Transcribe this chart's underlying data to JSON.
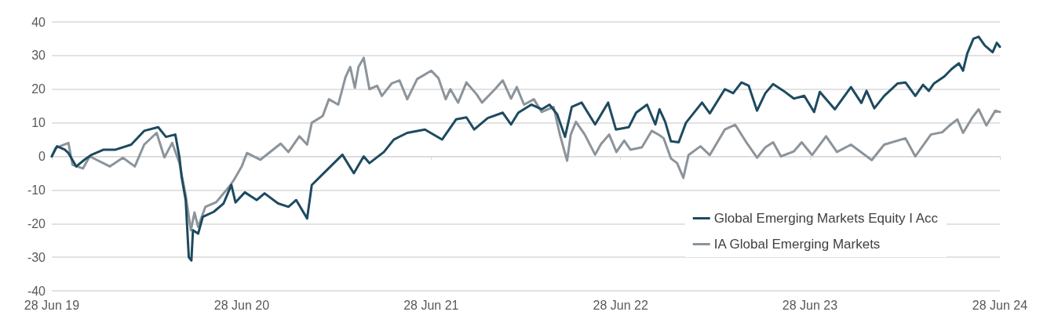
{
  "chart_data": {
    "type": "line",
    "xlim": [
      "2019-06-28",
      "2024-06-28"
    ],
    "xticks": [
      {
        "value": "2019-06-28",
        "label": "28 Jun 19"
      },
      {
        "value": "2020-06-28",
        "label": "28 Jun 20"
      },
      {
        "value": "2021-06-28",
        "label": "28 Jun 21"
      },
      {
        "value": "2022-06-28",
        "label": "28 Jun 22"
      },
      {
        "value": "2023-06-28",
        "label": "28 Jun 23"
      },
      {
        "value": "2024-06-28",
        "label": "28 Jun 24"
      }
    ],
    "ylim": [
      -40,
      40
    ],
    "yticks": [
      -40,
      -30,
      -20,
      -10,
      0,
      10,
      20,
      30,
      40
    ],
    "grid": "y",
    "legend": "bottom right",
    "marker": "none",
    "line_style": "solid",
    "series": [
      {
        "name": "Global Emerging Markets Equity I Acc",
        "color": "#1d4a60",
        "x": [
          "2019-06-28",
          "2019-07-08",
          "2019-07-23",
          "2019-07-30",
          "2019-08-14",
          "2019-08-30",
          "2019-09-13",
          "2019-10-06",
          "2019-10-29",
          "2019-11-28",
          "2019-12-23",
          "2020-01-19",
          "2020-02-03",
          "2020-02-21",
          "2020-02-29",
          "2020-03-04",
          "2020-03-12",
          "2020-03-18",
          "2020-03-23",
          "2020-03-26",
          "2020-04-05",
          "2020-04-14",
          "2020-05-05",
          "2020-05-24",
          "2020-06-08",
          "2020-06-16",
          "2020-07-04",
          "2020-07-27",
          "2020-08-11",
          "2020-09-06",
          "2020-09-26",
          "2020-10-11",
          "2020-11-01",
          "2020-11-10",
          "2020-12-05",
          "2021-01-08",
          "2021-01-30",
          "2021-02-18",
          "2021-03-01",
          "2021-03-29",
          "2021-04-17",
          "2021-05-13",
          "2021-06-16",
          "2021-07-19",
          "2021-08-15",
          "2021-09-04",
          "2021-09-19",
          "2021-10-15",
          "2021-11-13",
          "2021-11-29",
          "2021-12-13",
          "2022-01-07",
          "2022-01-27",
          "2022-02-11",
          "2022-02-26",
          "2022-03-13",
          "2022-03-26",
          "2022-04-14",
          "2022-05-10",
          "2022-06-04",
          "2022-06-19",
          "2022-07-14",
          "2022-07-28",
          "2022-08-18",
          "2022-09-03",
          "2022-09-11",
          "2022-09-22",
          "2022-10-03",
          "2022-10-18",
          "2022-11-01",
          "2022-12-02",
          "2022-12-17",
          "2023-01-15",
          "2023-01-31",
          "2023-02-16",
          "2023-03-02",
          "2023-03-18",
          "2023-04-03",
          "2023-04-18",
          "2023-05-08",
          "2023-05-28",
          "2023-06-17",
          "2023-07-06",
          "2023-07-17",
          "2023-08-15",
          "2023-09-15",
          "2023-10-05",
          "2023-10-15",
          "2023-10-30",
          "2023-11-18",
          "2023-12-14",
          "2023-12-29",
          "2024-01-17",
          "2024-02-01",
          "2024-02-12",
          "2024-02-22",
          "2024-03-13",
          "2024-03-27",
          "2024-04-10",
          "2024-04-18",
          "2024-04-26",
          "2024-05-08",
          "2024-05-18",
          "2024-05-30",
          "2024-06-14",
          "2024-06-22",
          "2024-06-28"
        ],
        "values": [
          0,
          3,
          2,
          1,
          -3,
          -1,
          0.5,
          2,
          2,
          3.5,
          7.6,
          8.7,
          5.8,
          6.5,
          -0.3,
          -6,
          -13,
          -30,
          -31,
          -22,
          -23,
          -18,
          -16.5,
          -14,
          -8.5,
          -13.7,
          -10.7,
          -13,
          -11,
          -14,
          -15,
          -13,
          -18.5,
          -8.5,
          -4.7,
          0.5,
          -5,
          0,
          -2,
          1.3,
          5,
          7,
          8,
          5,
          11,
          11.6,
          8,
          11.4,
          13,
          9.5,
          13,
          15.4,
          14,
          15.4,
          12.5,
          5.8,
          14.7,
          16,
          9.5,
          16,
          8,
          8.7,
          13,
          15.4,
          9.5,
          14,
          10.3,
          4.5,
          4.2,
          10,
          16,
          12.8,
          20,
          18.8,
          22,
          21,
          13.6,
          18.8,
          21.5,
          19.5,
          17.2,
          18,
          13.2,
          19.2,
          14,
          20.6,
          15.9,
          19.5,
          14.3,
          18,
          21.7,
          22,
          18,
          21.3,
          19.5,
          21.7,
          23.8,
          26,
          27.7,
          25.5,
          30.6,
          35,
          35.6,
          33,
          31,
          33.8,
          32.6
        ]
      },
      {
        "name": "IA Global Emerging Markets",
        "color": "#8c949b",
        "x": [
          "2019-06-28",
          "2019-07-05",
          "2019-07-30",
          "2019-08-07",
          "2019-08-27",
          "2019-09-09",
          "2019-10-18",
          "2019-11-12",
          "2019-12-05",
          "2019-12-23",
          "2020-01-16",
          "2020-01-31",
          "2020-02-15",
          "2020-02-29",
          "2020-03-12",
          "2020-03-22",
          "2020-03-29",
          "2020-04-05",
          "2020-04-19",
          "2020-05-10",
          "2020-06-04",
          "2020-06-13",
          "2020-06-28",
          "2020-07-08",
          "2020-08-03",
          "2020-09-11",
          "2020-09-26",
          "2020-10-17",
          "2020-11-01",
          "2020-11-10",
          "2020-12-01",
          "2020-12-13",
          "2020-12-31",
          "2021-01-14",
          "2021-01-23",
          "2021-02-01",
          "2021-02-08",
          "2021-02-18",
          "2021-03-01",
          "2021-03-16",
          "2021-03-25",
          "2021-04-13",
          "2021-04-28",
          "2021-05-13",
          "2021-06-01",
          "2021-06-28",
          "2021-07-12",
          "2021-07-26",
          "2021-08-04",
          "2021-08-19",
          "2021-09-04",
          "2021-09-24",
          "2021-10-04",
          "2021-10-29",
          "2021-11-13",
          "2021-11-29",
          "2021-12-10",
          "2021-12-24",
          "2022-01-12",
          "2022-01-27",
          "2022-02-19",
          "2022-03-03",
          "2022-03-17",
          "2022-03-24",
          "2022-04-03",
          "2022-04-20",
          "2022-05-10",
          "2022-05-21",
          "2022-06-06",
          "2022-06-20",
          "2022-07-05",
          "2022-07-17",
          "2022-08-08",
          "2022-08-27",
          "2022-09-11",
          "2022-09-19",
          "2022-10-03",
          "2022-10-15",
          "2022-10-27",
          "2022-11-06",
          "2022-11-29",
          "2022-12-17",
          "2023-01-15",
          "2023-02-04",
          "2023-02-27",
          "2023-03-18",
          "2023-04-03",
          "2023-04-18",
          "2023-05-03",
          "2023-05-28",
          "2023-06-12",
          "2023-07-02",
          "2023-07-29",
          "2023-08-19",
          "2023-09-15",
          "2023-10-25",
          "2023-11-18",
          "2023-12-29",
          "2024-01-17",
          "2024-02-16",
          "2024-03-09",
          "2024-03-23",
          "2024-04-07",
          "2024-04-18",
          "2024-05-06",
          "2024-05-18",
          "2024-06-02",
          "2024-06-19",
          "2024-06-28"
        ],
        "values": [
          0,
          2.5,
          4,
          -2.5,
          -3.6,
          0,
          -3,
          -0.4,
          -3,
          3.5,
          7,
          -0.3,
          4,
          -2,
          -11.6,
          -22,
          -16.7,
          -21,
          -15,
          -13.6,
          -9,
          -7,
          -3,
          1,
          -1,
          3.8,
          1.3,
          6,
          3.5,
          10,
          12,
          17,
          15.4,
          23.6,
          26.6,
          20.4,
          26.6,
          29.3,
          20,
          21,
          18,
          21.7,
          22.6,
          17,
          23,
          25.5,
          23.3,
          17,
          20,
          16,
          22,
          18.4,
          16,
          20,
          22.6,
          17.2,
          20.6,
          15.4,
          17,
          13.2,
          14.7,
          6.5,
          -1.3,
          6.5,
          10.3,
          6.5,
          0.5,
          3.6,
          6.5,
          1.3,
          4.7,
          2,
          2.7,
          7.6,
          6.3,
          5.4,
          -0.6,
          -2,
          -6.4,
          0.4,
          3,
          0.4,
          8,
          9.4,
          3.8,
          -0.4,
          2.7,
          4.2,
          0,
          1.5,
          4.2,
          0.4,
          6,
          1.3,
          3.5,
          -1.1,
          3.5,
          5.4,
          0,
          6.5,
          7.2,
          9.2,
          11,
          7,
          11.6,
          14,
          9.2,
          13.6,
          13.2
        ]
      }
    ]
  }
}
